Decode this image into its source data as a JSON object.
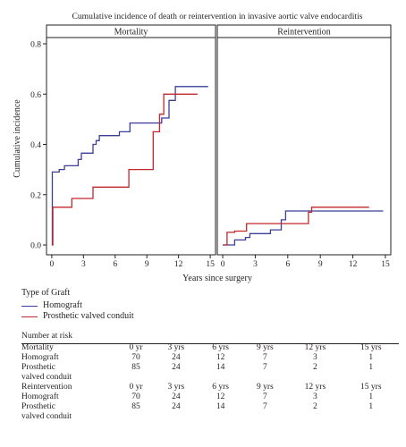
{
  "chart_data": {
    "type": "line",
    "title": "Cumulative incidence of death or reintervention in invasive aortic valve endocarditis",
    "ylabel": "Cumulative incidence",
    "xlabel": "Years since surgery",
    "ylim": [
      0,
      0.85
    ],
    "xlim": [
      -0.5,
      15.5
    ],
    "xticks": [
      "0",
      "3",
      "6",
      "9",
      "12",
      "15"
    ],
    "yticks": [
      "0.0",
      "0.2",
      "0.4",
      "0.6",
      "0.8"
    ],
    "colors": {
      "homograft": "#3b3f99",
      "prosthetic": "#c1272d"
    },
    "panels": [
      {
        "name": "Mortality",
        "series": [
          {
            "name": "Homograft",
            "color": "#3b3f99",
            "steps": [
              [
                0,
                0.0
              ],
              [
                0.05,
                0.29
              ],
              [
                0.6,
                0.29
              ],
              [
                0.7,
                0.3
              ],
              [
                1.1,
                0.3
              ],
              [
                1.2,
                0.315
              ],
              [
                2.4,
                0.315
              ],
              [
                2.5,
                0.34
              ],
              [
                2.7,
                0.34
              ],
              [
                2.8,
                0.365
              ],
              [
                3.8,
                0.365
              ],
              [
                3.9,
                0.4
              ],
              [
                4.1,
                0.4
              ],
              [
                4.2,
                0.415
              ],
              [
                4.4,
                0.415
              ],
              [
                4.5,
                0.435
              ],
              [
                6.3,
                0.435
              ],
              [
                6.4,
                0.45
              ],
              [
                7.3,
                0.45
              ],
              [
                7.4,
                0.485
              ],
              [
                10.3,
                0.485
              ],
              [
                10.4,
                0.505
              ],
              [
                11.0,
                0.505
              ],
              [
                11.1,
                0.575
              ],
              [
                11.6,
                0.575
              ],
              [
                11.7,
                0.63
              ],
              [
                14.8,
                0.63
              ]
            ]
          },
          {
            "name": "Prosthetic valved conduit",
            "color": "#c1272d",
            "steps": [
              [
                0,
                0.0
              ],
              [
                0.1,
                0.15
              ],
              [
                1.8,
                0.15
              ],
              [
                1.9,
                0.185
              ],
              [
                3.8,
                0.185
              ],
              [
                3.9,
                0.23
              ],
              [
                7.2,
                0.23
              ],
              [
                7.3,
                0.3
              ],
              [
                9.5,
                0.3
              ],
              [
                9.6,
                0.45
              ],
              [
                10.1,
                0.45
              ],
              [
                10.2,
                0.52
              ],
              [
                10.5,
                0.52
              ],
              [
                10.6,
                0.6
              ],
              [
                13.8,
                0.6
              ]
            ]
          }
        ]
      },
      {
        "name": "Reintervention",
        "series": [
          {
            "name": "Homograft",
            "color": "#3b3f99",
            "steps": [
              [
                0,
                0.0
              ],
              [
                1.0,
                0.0
              ],
              [
                1.1,
                0.02
              ],
              [
                2.0,
                0.02
              ],
              [
                2.1,
                0.03
              ],
              [
                2.4,
                0.03
              ],
              [
                2.5,
                0.045
              ],
              [
                4.3,
                0.045
              ],
              [
                4.4,
                0.06
              ],
              [
                5.3,
                0.06
              ],
              [
                5.4,
                0.1
              ],
              [
                5.7,
                0.1
              ],
              [
                5.8,
                0.135
              ],
              [
                14.8,
                0.135
              ]
            ]
          },
          {
            "name": "Prosthetic valved conduit",
            "color": "#c1272d",
            "steps": [
              [
                0,
                0.0
              ],
              [
                0.3,
                0.0
              ],
              [
                0.4,
                0.05
              ],
              [
                1.0,
                0.05
              ],
              [
                1.1,
                0.055
              ],
              [
                2.1,
                0.055
              ],
              [
                2.2,
                0.085
              ],
              [
                7.8,
                0.085
              ],
              [
                7.9,
                0.13
              ],
              [
                8.1,
                0.13
              ],
              [
                8.2,
                0.15
              ],
              [
                13.5,
                0.15
              ]
            ]
          }
        ]
      }
    ]
  },
  "legend": {
    "title": "Type of Graft",
    "items": [
      {
        "label": "Homograft",
        "color": "#3b3f99"
      },
      {
        "label": "Prosthetic valved conduit",
        "color": "#c1272d"
      }
    ]
  },
  "risk_table": {
    "title": "Number at risk",
    "blocks": [
      {
        "header": [
          "Mortality",
          "0 yr",
          "3 yrs",
          "6 yrs",
          "9 yrs",
          "12 yrs",
          "15 yrs"
        ],
        "rows": [
          {
            "label": "Homograft",
            "values": [
              "70",
              "24",
              "12",
              "7",
              "3",
              "1"
            ]
          },
          {
            "label": "Prosthetic",
            "label2": "valved conduit",
            "values": [
              "85",
              "24",
              "14",
              "7",
              "2",
              "1"
            ]
          }
        ]
      },
      {
        "header": [
          "Reintervention",
          "0 yr",
          "3 yrs",
          "6 yrs",
          "9 yrs",
          "12 yrs",
          "15 yrs"
        ],
        "rows": [
          {
            "label": "Homograft",
            "values": [
              "70",
              "24",
              "12",
              "7",
              "3",
              "1"
            ]
          },
          {
            "label": "Prosthetic",
            "label2": "valved conduit",
            "values": [
              "85",
              "24",
              "14",
              "7",
              "2",
              "1"
            ]
          }
        ]
      }
    ]
  }
}
